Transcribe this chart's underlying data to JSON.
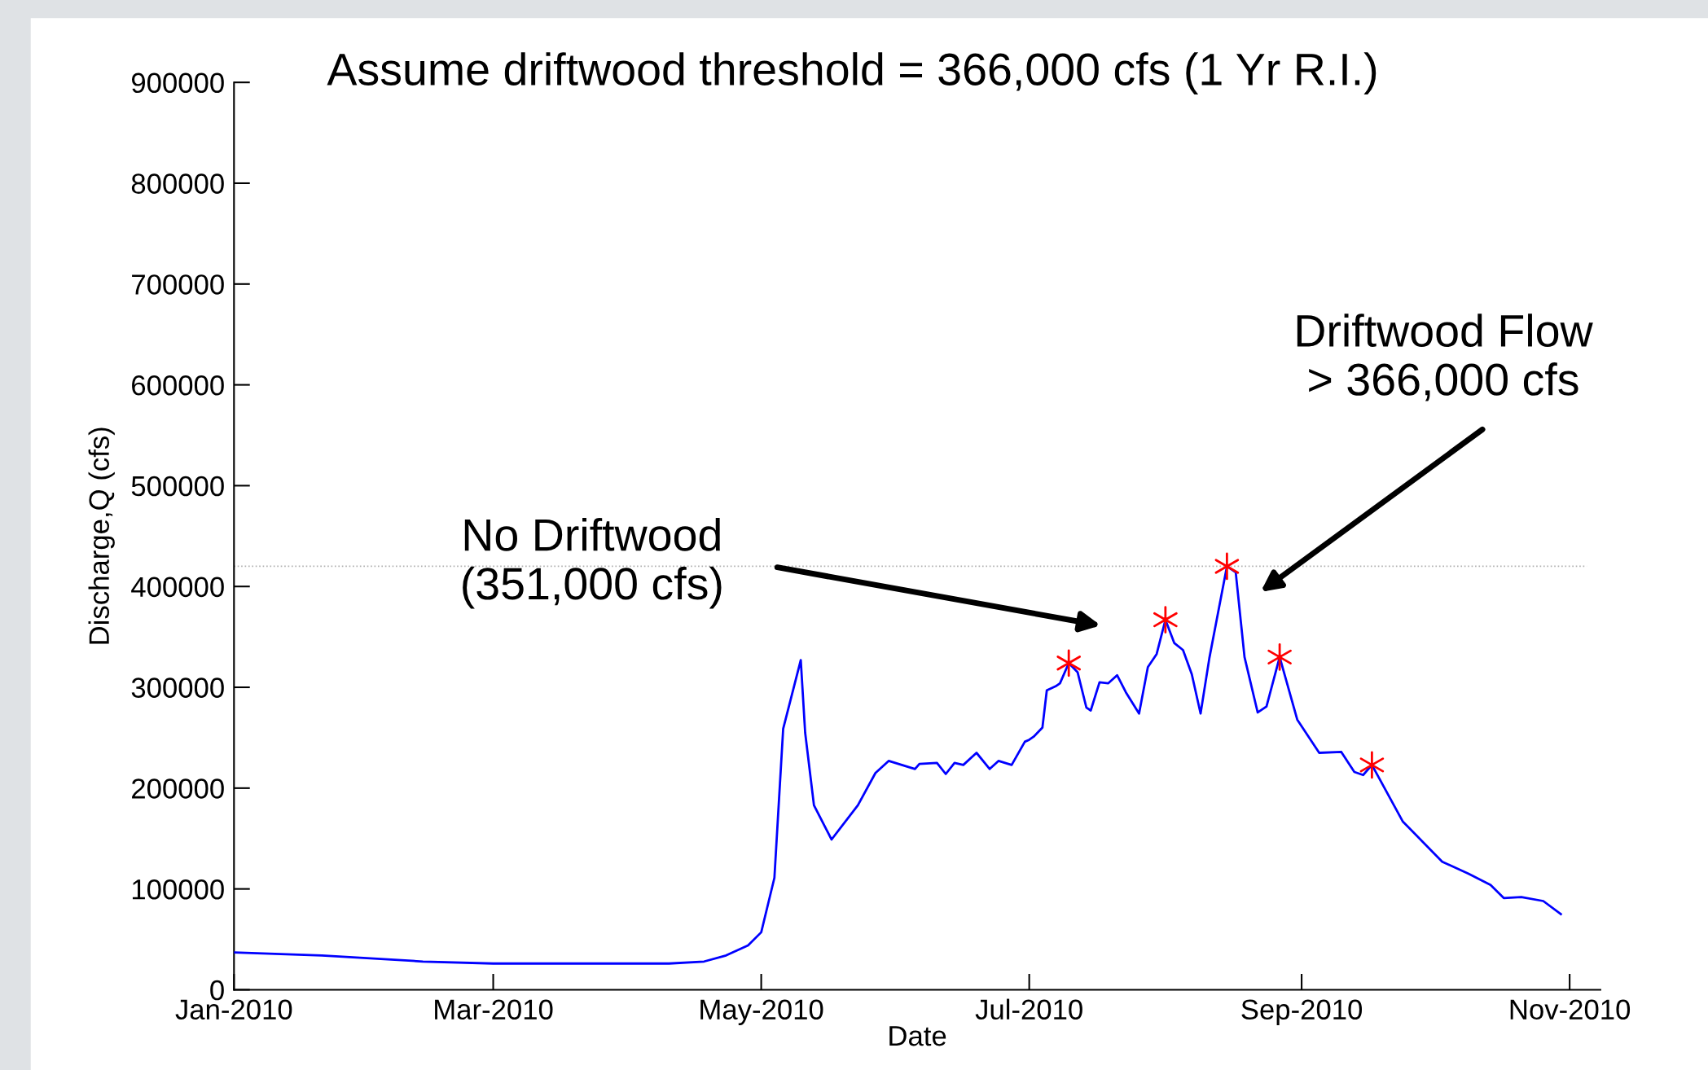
{
  "chart_data": {
    "type": "line",
    "title": "Assume driftwood threshold = 366,000 cfs (1 Yr R.I.)",
    "xlabel": "Date",
    "ylabel": "Discharge,Q (cfs)",
    "series": [
      {
        "color": "#0000ff",
        "marker": "none",
        "line_style": "solid",
        "x": [
          "2010-01-01",
          "2010-01-21",
          "2010-02-13",
          "2010-03-01",
          "2010-03-22",
          "2010-04-10",
          "2010-04-18",
          "2010-04-23",
          "2010-04-28",
          "2010-05-01",
          "2010-05-04",
          "2010-05-06",
          "2010-05-10",
          "2010-05-11",
          "2010-05-13",
          "2010-05-17",
          "2010-05-23",
          "2010-05-27",
          "2010-05-30",
          "2010-06-05",
          "2010-06-06",
          "2010-06-10",
          "2010-06-12",
          "2010-06-14",
          "2010-06-16",
          "2010-06-19",
          "2010-06-22",
          "2010-06-24",
          "2010-06-27",
          "2010-06-30",
          "2010-07-01",
          "2010-07-02",
          "2010-07-04",
          "2010-07-05",
          "2010-07-07",
          "2010-07-08",
          "2010-07-10",
          "2010-07-12",
          "2010-07-14",
          "2010-07-15",
          "2010-07-17",
          "2010-07-19",
          "2010-07-21",
          "2010-07-23",
          "2010-07-26",
          "2010-07-28",
          "2010-07-30",
          "2010-08-01",
          "2010-08-03",
          "2010-08-05",
          "2010-08-07",
          "2010-08-09",
          "2010-08-11",
          "2010-08-15",
          "2010-08-17",
          "2010-08-19",
          "2010-08-22",
          "2010-08-24",
          "2010-08-27",
          "2010-08-31",
          "2010-09-05",
          "2010-09-10",
          "2010-09-13",
          "2010-09-15",
          "2010-09-17",
          "2010-09-24",
          "2010-10-03",
          "2010-10-09",
          "2010-10-14",
          "2010-10-17",
          "2010-10-21",
          "2010-10-26",
          "2010-10-30"
        ],
        "values": [
          37000,
          34000,
          28000,
          26000,
          26000,
          26000,
          28000,
          34000,
          44000,
          57000,
          111000,
          259000,
          327000,
          255000,
          183000,
          149000,
          183000,
          215000,
          227000,
          219000,
          224000,
          225000,
          214000,
          225000,
          223000,
          235000,
          219000,
          227000,
          223000,
          246000,
          248000,
          251000,
          260000,
          297000,
          301000,
          304000,
          324000,
          315000,
          280000,
          277000,
          305000,
          304000,
          312000,
          295000,
          274000,
          320000,
          333000,
          367000,
          344000,
          337000,
          313000,
          274000,
          329000,
          420000,
          414000,
          330000,
          275000,
          281000,
          330000,
          268000,
          235000,
          236000,
          216000,
          213000,
          223000,
          167000,
          127000,
          115000,
          104000,
          91000,
          92000,
          88000,
          75000
        ]
      },
      {
        "type": "scatter",
        "color": "#ff0000",
        "marker": "cross",
        "x": [
          "2010-07-10",
          "2010-08-01",
          "2010-08-15",
          "2010-08-27",
          "2010-09-17"
        ],
        "values": [
          324000,
          367000,
          420000,
          330000,
          223000
        ]
      }
    ],
    "ref_lines": [
      {
        "axis": "y",
        "value": 420000,
        "color": "#b0b0b0",
        "line_style": "dotted"
      }
    ],
    "annotations": [
      "No Driftwood\n(351,000 cfs)",
      "Driftwood Flow\n> 366,000 cfs"
    ],
    "xlim": [
      "2010-01-01",
      "2010-11-08"
    ],
    "xticks": [
      {
        "value": "2010-01-01",
        "label": "Jan-2010"
      },
      {
        "value": "2010-03-01",
        "label": "Mar-2010"
      },
      {
        "value": "2010-05-01",
        "label": "May-2010"
      },
      {
        "value": "2010-07-01",
        "label": "Jul-2010"
      },
      {
        "value": "2010-09-01",
        "label": "Sep-2010"
      },
      {
        "value": "2010-11-01",
        "label": "Nov-2010"
      }
    ],
    "ylim": [
      0,
      900000
    ],
    "yticks": [
      0,
      100000,
      200000,
      300000,
      400000,
      500000,
      600000,
      700000,
      800000,
      900000
    ],
    "grid": false,
    "legend": false
  }
}
